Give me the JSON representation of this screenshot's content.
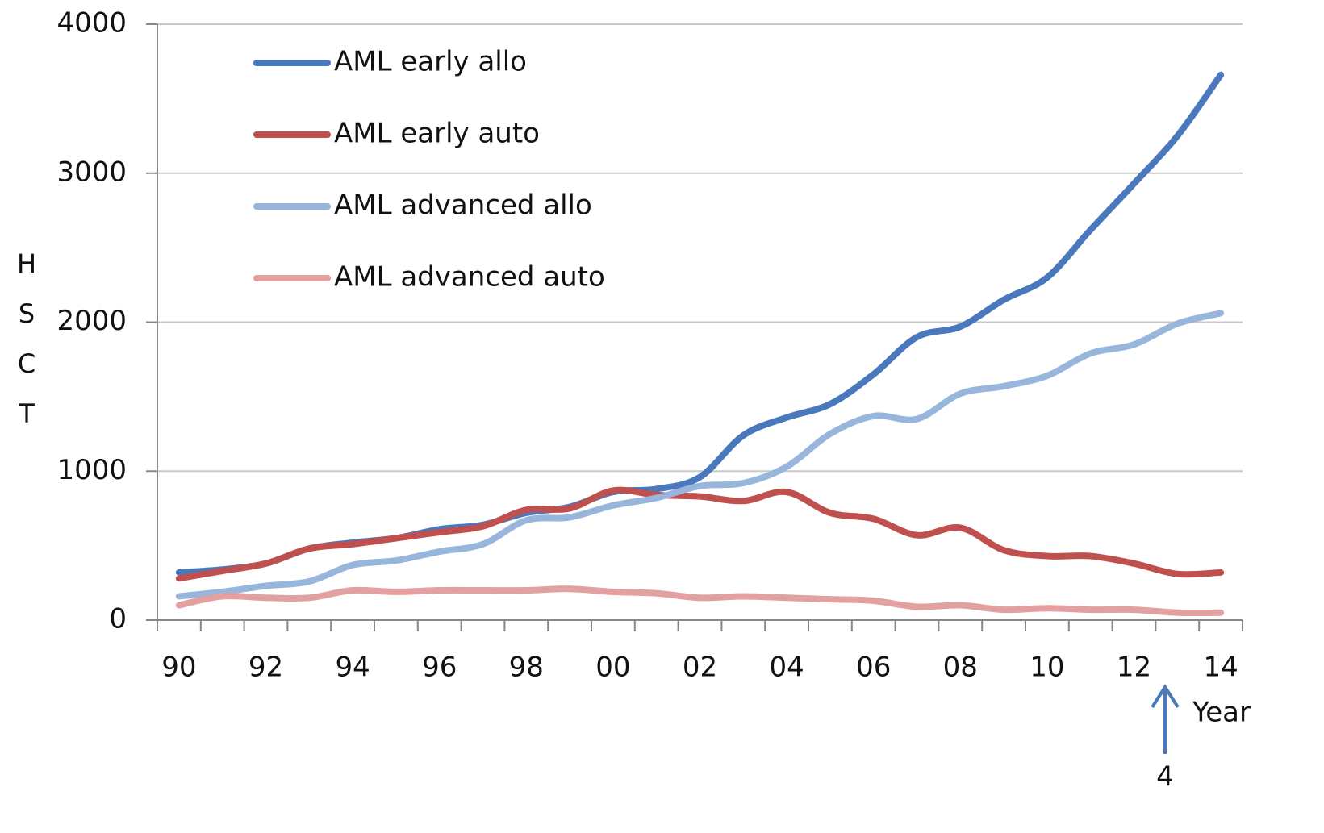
{
  "chart_data": {
    "type": "line",
    "y_label": "HSCT",
    "x_label": "Year",
    "categories": [
      "90",
      null,
      "92",
      null,
      "94",
      null,
      "96",
      null,
      "98",
      null,
      "00",
      null,
      "02",
      null,
      "04",
      null,
      "06",
      null,
      "08",
      null,
      "10",
      null,
      "12",
      null,
      "14"
    ],
    "series": [
      {
        "name": "AML early allo",
        "color": "#4a78bd",
        "values": [
          320,
          340,
          380,
          480,
          520,
          550,
          610,
          640,
          720,
          760,
          860,
          880,
          960,
          1240,
          1360,
          1450,
          1650,
          1900,
          1970,
          2150,
          2300,
          2620,
          2930,
          3250,
          3660
        ]
      },
      {
        "name": "AML early auto",
        "color": "#c0504d",
        "values": [
          280,
          330,
          380,
          480,
          510,
          550,
          590,
          630,
          740,
          750,
          870,
          840,
          830,
          800,
          860,
          720,
          680,
          570,
          620,
          470,
          430,
          430,
          380,
          310,
          320
        ]
      },
      {
        "name": "AML advanced allo",
        "color": "#98b6dc",
        "values": [
          160,
          190,
          230,
          260,
          370,
          400,
          460,
          510,
          670,
          690,
          770,
          820,
          900,
          920,
          1030,
          1250,
          1370,
          1350,
          1520,
          1570,
          1640,
          1790,
          1850,
          1990,
          2060
        ]
      },
      {
        "name": "AML advanced auto",
        "color": "#e3a0a0",
        "values": [
          100,
          160,
          150,
          150,
          200,
          190,
          200,
          200,
          200,
          210,
          190,
          180,
          150,
          160,
          150,
          140,
          130,
          90,
          100,
          70,
          80,
          70,
          70,
          50,
          50
        ]
      }
    ],
    "ylim": [
      0,
      4000
    ],
    "yticks": [
      0,
      1000,
      2000,
      3000,
      4000
    ],
    "grid": true,
    "annotations": [
      {
        "text": "4"
      }
    ]
  }
}
